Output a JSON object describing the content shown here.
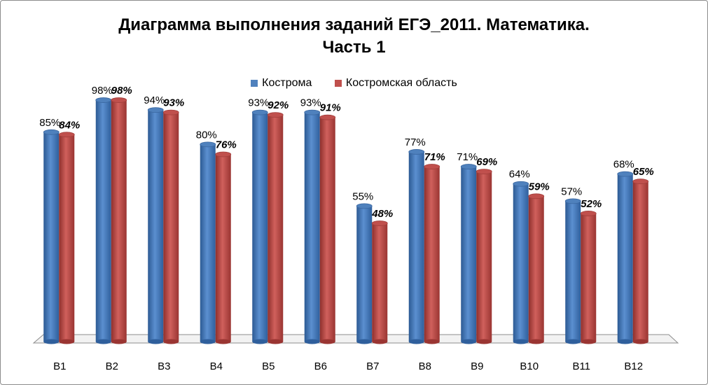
{
  "chart_data": {
    "type": "bar",
    "title_line1": "Диаграмма выполнения заданий  ЕГЭ_2011. Математика.",
    "title_line2": "Часть 1",
    "categories": [
      "B1",
      "B2",
      "B3",
      "B4",
      "B5",
      "B6",
      "B7",
      "B8",
      "B9",
      "B10",
      "B11",
      "B12"
    ],
    "series": [
      {
        "name": "Кострома",
        "color": "#4f81bd",
        "values": [
          85,
          98,
          94,
          80,
          93,
          93,
          55,
          77,
          71,
          64,
          57,
          68
        ],
        "labels": [
          "85%",
          "98%",
          "94%",
          "80%",
          "93%",
          "93%",
          "55%",
          "77%",
          "71%",
          "64%",
          "57%",
          "68%"
        ]
      },
      {
        "name": "Костромская область",
        "color": "#c0504d",
        "values": [
          84,
          98,
          93,
          76,
          92,
          91,
          48,
          71,
          69,
          59,
          52,
          65
        ],
        "labels": [
          "84%",
          "98%",
          "93%",
          "76%",
          "92%",
          "91%",
          "48%",
          "71%",
          "69%",
          "59%",
          "52%",
          "65%"
        ]
      }
    ],
    "ylim": [
      0,
      100
    ],
    "grid": false,
    "legend_position": "top"
  }
}
